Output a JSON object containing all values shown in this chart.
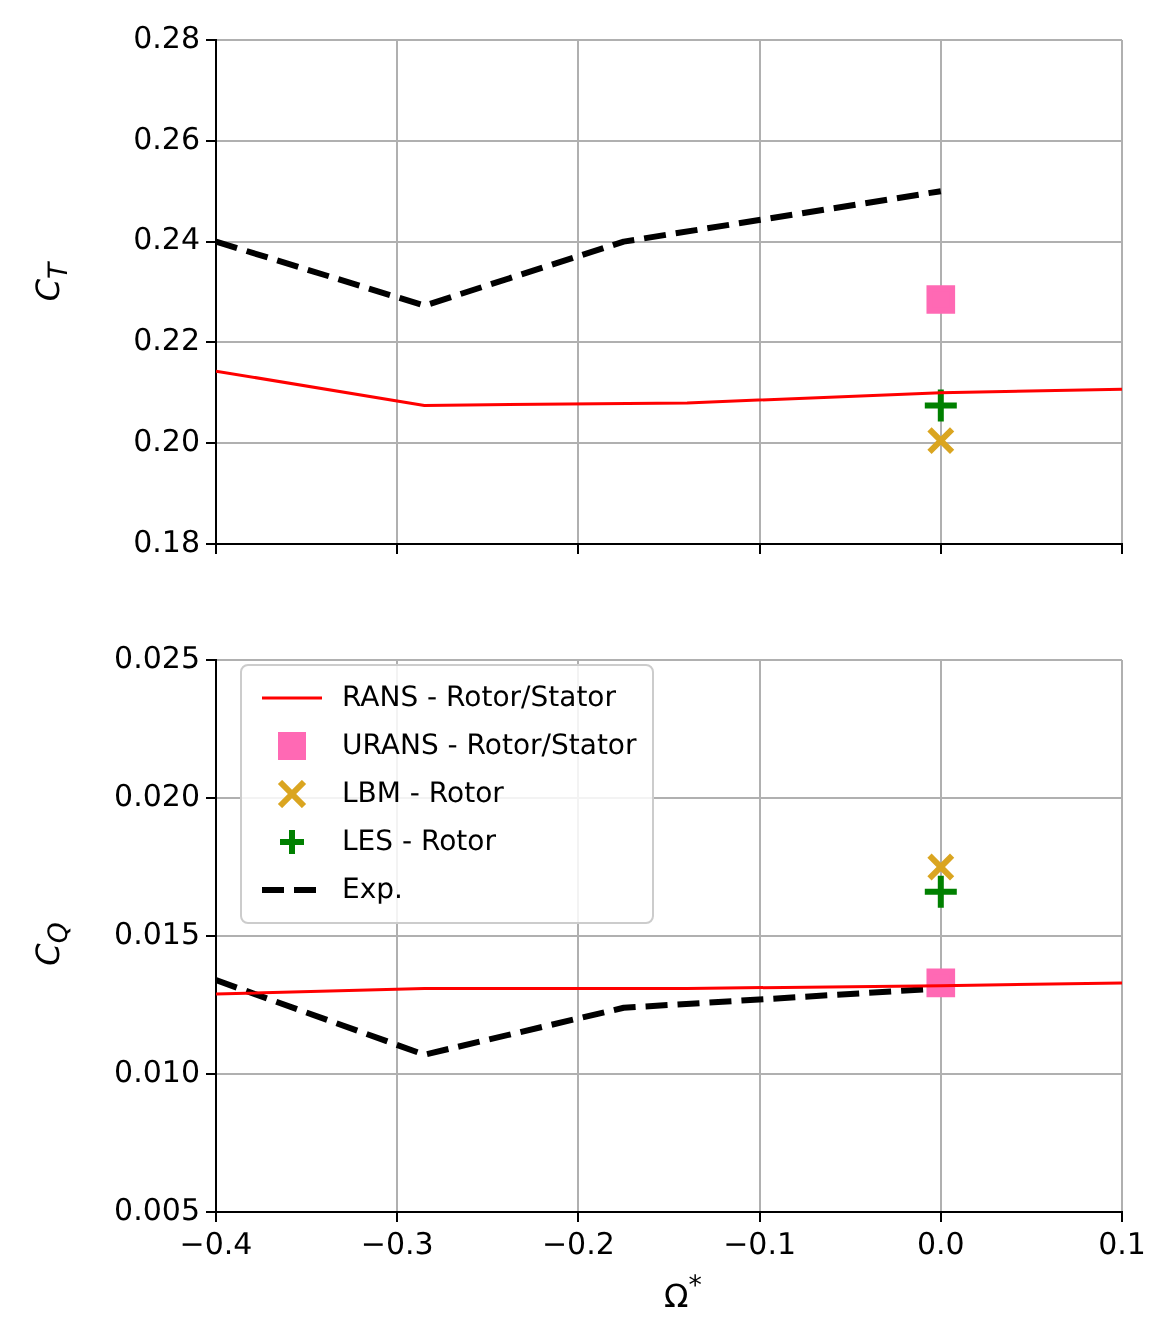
{
  "chart_data": [
    {
      "type": "line",
      "ylabel": "C$_{T}$",
      "xlim": [
        -0.4,
        0.1
      ],
      "xticks": [
        -0.4,
        -0.3,
        -0.2,
        -0.1,
        0,
        0.1
      ],
      "ylim": [
        0.18,
        0.28
      ],
      "yticks": [
        0.18,
        {
          "value": 0.2,
          "label": "0.20"
        },
        0.22,
        0.24,
        0.26,
        0.28
      ],
      "grid": true,
      "tick_labels": "y",
      "series": [
        {
          "color": "#ff0000",
          "x": [
            -0.4,
            -0.285,
            -0.14,
            0.0,
            0.1
          ],
          "values": [
            0.2143,
            0.2075,
            0.208,
            0.21,
            0.2107
          ]
        },
        {
          "type": "scatter",
          "marker": "square",
          "color": "#ff69b4",
          "x": [
            0.0
          ],
          "values": [
            0.2285
          ]
        },
        {
          "type": "scatter",
          "marker": "x",
          "color": "#daa520",
          "x": [
            0.0
          ],
          "values": [
            0.2005
          ]
        },
        {
          "type": "scatter",
          "marker": "cross",
          "color": "#008000",
          "x": [
            0.0
          ],
          "values": [
            0.2075
          ]
        },
        {
          "line_style": "dashed",
          "color": "#000000",
          "x": [
            -0.4,
            -0.285,
            -0.175,
            0.0
          ],
          "values": [
            0.24,
            0.2273,
            0.24,
            0.25
          ]
        }
      ]
    },
    {
      "type": "line",
      "xlabel": "Ω$^{*}$",
      "ylabel": "C$_{Q}$",
      "xlim": [
        -0.4,
        0.1
      ],
      "xticks": [
        -0.4,
        -0.3,
        -0.2,
        -0.1,
        {
          "value": 0,
          "label": "0.0"
        },
        0.1
      ],
      "ylim": [
        0.005,
        0.025
      ],
      "yticks": [
        0.005,
        {
          "value": 0.01,
          "label": "0.010"
        },
        0.015,
        {
          "value": 0.02,
          "label": "0.020"
        },
        0.025
      ],
      "grid": true,
      "legend": "top left",
      "series": [
        {
          "name": "RANS - Rotor/Stator",
          "color": "#ff0000",
          "x": [
            -0.4,
            -0.285,
            -0.14,
            0.0,
            0.1
          ],
          "values": [
            0.0129,
            0.0131,
            0.0131,
            0.0132,
            0.0133
          ]
        },
        {
          "type": "scatter",
          "name": "URANS - Rotor/Stator",
          "marker": "square",
          "color": "#ff69b4",
          "x": [
            0.0
          ],
          "values": [
            0.0133
          ]
        },
        {
          "type": "scatter",
          "name": "LBM - Rotor",
          "marker": "x",
          "color": "#daa520",
          "x": [
            0.0
          ],
          "values": [
            0.0175
          ]
        },
        {
          "type": "scatter",
          "name": "LES - Rotor",
          "marker": "cross",
          "color": "#008000",
          "x": [
            0.0
          ],
          "values": [
            0.0166
          ]
        },
        {
          "name": "Exp.",
          "line_style": "dashed",
          "color": "#000000",
          "x": [
            -0.4,
            -0.285,
            -0.175,
            0.0
          ],
          "values": [
            0.0134,
            0.0107,
            0.0124,
            0.0131
          ]
        }
      ]
    }
  ]
}
